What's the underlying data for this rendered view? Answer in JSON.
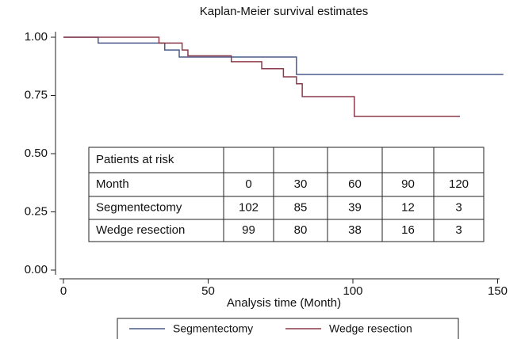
{
  "chart_data": {
    "type": "step",
    "title": "Kaplan-Meier survival estimates",
    "x_label": "Analysis time (Month)",
    "xlim": [
      -3,
      153
    ],
    "xticks": [
      0,
      50,
      100,
      150
    ],
    "ylim": [
      -0.04,
      1.02
    ],
    "yticks": [
      {
        "value": 0,
        "label": "0.00"
      },
      {
        "value": 0.25,
        "label": "0.25"
      },
      {
        "value": 0.5,
        "label": "0.50"
      },
      {
        "value": 0.75,
        "label": "0.75"
      },
      {
        "value": 1,
        "label": "1.00"
      }
    ],
    "series": [
      {
        "name": "Segmentectomy",
        "color": "#4b5a8c",
        "x": [
          0,
          12,
          35,
          40,
          80.5,
          152
        ],
        "values": [
          1,
          0.975,
          0.945,
          0.915,
          0.84,
          0.84
        ]
      },
      {
        "name": "Wedge resection",
        "color": "#8c3a4c",
        "x": [
          0,
          33,
          41,
          43,
          58,
          68.5,
          76,
          80.5,
          82.5,
          100.5,
          137
        ],
        "values": [
          1,
          0.975,
          0.945,
          0.92,
          0.895,
          0.865,
          0.83,
          0.8,
          0.745,
          0.66,
          0.66
        ]
      }
    ],
    "risk_table": {
      "title": "Patients at risk",
      "rows": [
        [
          "Month",
          0,
          30,
          60,
          90,
          120
        ],
        [
          "Segmentectomy",
          102,
          85,
          39,
          12,
          3
        ],
        [
          "Wedge resection",
          99,
          80,
          38,
          16,
          3
        ]
      ]
    }
  }
}
